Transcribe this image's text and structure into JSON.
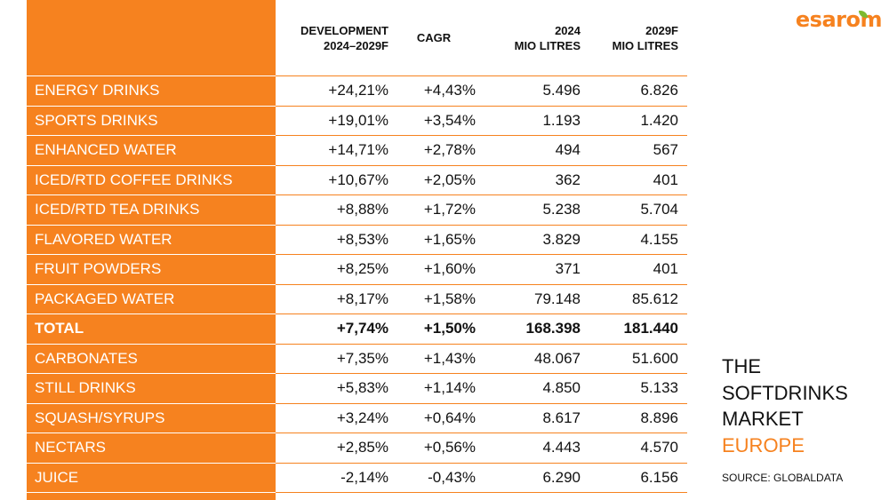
{
  "chart_data": {
    "type": "table",
    "columns": [
      {
        "line1": "DEVELOPMENT",
        "line2": "2024–2029F"
      },
      {
        "line1": "CAGR",
        "line2": ""
      },
      {
        "line1": "2024",
        "line2": "MIO LITRES"
      },
      {
        "line1": "2029F",
        "line2": "MIO LITRES"
      }
    ],
    "rows": [
      {
        "name": "ENERGY DRINKS",
        "development": "+24,21%",
        "cagr": "+4,43%",
        "y2024": "5.496",
        "y2029": "6.826"
      },
      {
        "name": "SPORTS DRINKS",
        "development": "+19,01%",
        "cagr": "+3,54%",
        "y2024": "1.193",
        "y2029": "1.420"
      },
      {
        "name": "ENHANCED WATER",
        "development": "+14,71%",
        "cagr": "+2,78%",
        "y2024": "494",
        "y2029": "567"
      },
      {
        "name": "ICED/RTD COFFEE DRINKS",
        "development": "+10,67%",
        "cagr": "+2,05%",
        "y2024": "362",
        "y2029": "401"
      },
      {
        "name": "ICED/RTD TEA DRINKS",
        "development": "+8,88%",
        "cagr": "+1,72%",
        "y2024": "5.238",
        "y2029": "5.704"
      },
      {
        "name": "FLAVORED WATER",
        "development": "+8,53%",
        "cagr": "+1,65%",
        "y2024": "3.829",
        "y2029": "4.155"
      },
      {
        "name": "FRUIT POWDERS",
        "development": "+8,25%",
        "cagr": "+1,60%",
        "y2024": "371",
        "y2029": "401"
      },
      {
        "name": "PACKAGED WATER",
        "development": "+8,17%",
        "cagr": "+1,58%",
        "y2024": "79.148",
        "y2029": "85.612"
      },
      {
        "name": "TOTAL",
        "development": "+7,74%",
        "cagr": "+1,50%",
        "y2024": "168.398",
        "y2029": "181.440",
        "is_total": true
      },
      {
        "name": "CARBONATES",
        "development": "+7,35%",
        "cagr": "+1,43%",
        "y2024": "48.067",
        "y2029": "51.600"
      },
      {
        "name": "STILL DRINKS",
        "development": "+5,83%",
        "cagr": "+1,14%",
        "y2024": "4.850",
        "y2029": "5.133"
      },
      {
        "name": "SQUASH/SYRUPS",
        "development": "+3,24%",
        "cagr": "+0,64%",
        "y2024": "8.617",
        "y2029": "8.896"
      },
      {
        "name": "NECTARS",
        "development": "+2,85%",
        "cagr": "+0,56%",
        "y2024": "4.443",
        "y2029": "4.570"
      },
      {
        "name": "JUICE",
        "development": "-2,14%",
        "cagr": "-0,43%",
        "y2024": "6.290",
        "y2029": "6.156"
      }
    ]
  },
  "branding": {
    "logo_text": "esarom",
    "accent_color": "#f6821f",
    "leaf_color": "#7dba2f"
  },
  "side_title": {
    "line1": "THE",
    "line2": "SOFTDRINKS",
    "line3": "MARKET",
    "line4": "EUROPE"
  },
  "source": "SOURCE: GLOBALDATA"
}
